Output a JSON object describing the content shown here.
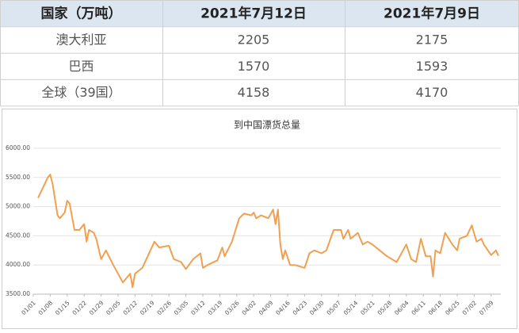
{
  "table": {
    "header": [
      "国家（万吨）",
      "2021年7月12日",
      "2021年7月9日"
    ],
    "rows": [
      [
        "澳大利亚",
        "2205",
        "2175"
      ],
      [
        "巴西",
        "1570",
        "1593"
      ],
      [
        "全球（39国）",
        "4158",
        "4170"
      ]
    ]
  },
  "chart_data": {
    "type": "line",
    "title": "到中国漂货总量",
    "x": [
      "01/03",
      "01/07",
      "01/08",
      "01/09",
      "01/11",
      "01/12",
      "01/14",
      "01/15",
      "01/16",
      "01/18",
      "01/20",
      "01/22",
      "01/23",
      "01/24",
      "01/26",
      "01/27",
      "01/29",
      "01/31",
      "02/03",
      "02/05",
      "02/07",
      "02/09",
      "02/10",
      "02/11",
      "02/12",
      "02/15",
      "02/20",
      "02/22",
      "02/26",
      "02/28",
      "03/03",
      "03/05",
      "03/08",
      "03/11",
      "03/12",
      "03/14",
      "03/18",
      "03/20",
      "03/21",
      "03/24",
      "03/27",
      "03/29",
      "04/01",
      "04/02",
      "04/03",
      "04/05",
      "04/08",
      "04/10",
      "04/11",
      "04/12",
      "04/13",
      "04/14",
      "04/15",
      "04/17",
      "04/19",
      "04/23",
      "04/25",
      "04/27",
      "04/30",
      "05/02",
      "05/05",
      "05/08",
      "05/09",
      "05/11",
      "05/12",
      "05/15",
      "05/17",
      "05/19",
      "05/21",
      "05/24",
      "05/27",
      "05/31",
      "06/04",
      "06/06",
      "06/08",
      "06/10",
      "06/12",
      "06/14",
      "06/15",
      "06/16",
      "06/18",
      "06/20",
      "06/23",
      "06/25",
      "06/26",
      "06/29",
      "07/01",
      "07/03",
      "07/05",
      "07/06",
      "07/09",
      "07/11",
      "07/12"
    ],
    "series": [
      {
        "name": "到中国漂货总量",
        "color": "#f0a050",
        "values": [
          5150,
          5500,
          5550,
          5380,
          4850,
          4800,
          4900,
          5100,
          5050,
          4600,
          4600,
          4700,
          4400,
          4600,
          4550,
          4450,
          4100,
          4250,
          4000,
          3850,
          3700,
          3800,
          3850,
          3620,
          3850,
          3950,
          4400,
          4300,
          4330,
          4100,
          4050,
          3930,
          4100,
          4200,
          3950,
          4000,
          4080,
          4300,
          4150,
          4400,
          4800,
          4880,
          4850,
          4900,
          4800,
          4850,
          4800,
          4950,
          4700,
          4950,
          4350,
          4100,
          4250,
          4000,
          4000,
          3950,
          4200,
          4250,
          4200,
          4250,
          4600,
          4600,
          4450,
          4600,
          4450,
          4550,
          4350,
          4400,
          4350,
          4250,
          4150,
          4050,
          4350,
          4100,
          4050,
          4450,
          4150,
          4150,
          3800,
          4250,
          4200,
          4550,
          4350,
          4250,
          4450,
          4500,
          4680,
          4400,
          4450,
          4350,
          4170,
          4250,
          4158
        ]
      }
    ],
    "xlim": [
      "01/01",
      "07/12"
    ],
    "xticks": [
      "01/01",
      "01/08",
      "01/15",
      "01/22",
      "01/29",
      "02/05",
      "02/12",
      "02/19",
      "02/26",
      "03/05",
      "03/12",
      "03/19",
      "03/26",
      "04/02",
      "04/09",
      "04/16",
      "04/23",
      "04/30",
      "05/07",
      "05/14",
      "05/21",
      "05/28",
      "06/04",
      "06/11",
      "06/18",
      "06/25",
      "07/02",
      "07/09"
    ],
    "ylim": [
      3500,
      6000
    ],
    "yticks": [
      {
        "value": 3500,
        "label": "3500.00"
      },
      {
        "value": 4000,
        "label": "4000.00"
      },
      {
        "value": 4500,
        "label": "4500.00"
      },
      {
        "value": 5000,
        "label": "5000.00"
      },
      {
        "value": 5500,
        "label": "5500.00"
      },
      {
        "value": 6000,
        "label": "6000.00"
      }
    ],
    "grid": true
  }
}
